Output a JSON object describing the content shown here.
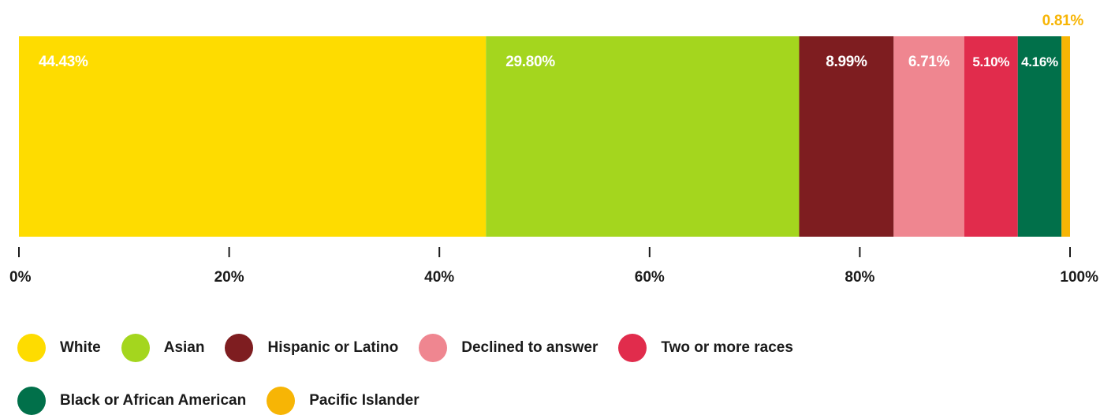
{
  "chart_data": {
    "type": "bar",
    "orientation": "horizontal-stacked",
    "title": "",
    "xlabel": "",
    "ylabel": "",
    "xlim": [
      0,
      100
    ],
    "x_ticks": [
      "0%",
      "20%",
      "40%",
      "60%",
      "80%",
      "100%"
    ],
    "x_tick_values": [
      0,
      20,
      40,
      60,
      80,
      100
    ],
    "grid": false,
    "legend_position": "bottom",
    "series": [
      {
        "name": "White",
        "value": 44.43,
        "label": "44.43%",
        "color": "#FEDC00"
      },
      {
        "name": "Asian",
        "value": 29.8,
        "label": "29.80%",
        "color": "#A4D61E"
      },
      {
        "name": "Hispanic or Latino",
        "value": 8.99,
        "label": "8.99%",
        "color": "#7E1D20"
      },
      {
        "name": "Declined to answer",
        "value": 6.71,
        "label": "6.71%",
        "color": "#EF8690"
      },
      {
        "name": "Two or more races",
        "value": 5.1,
        "label": "5.10%",
        "color": "#E12C4C"
      },
      {
        "name": "Black or African American",
        "value": 4.16,
        "label": "4.16%",
        "color": "#01704A"
      },
      {
        "name": "Pacific Islander",
        "value": 0.81,
        "label": "0.81%",
        "color": "#F7B505"
      }
    ]
  }
}
